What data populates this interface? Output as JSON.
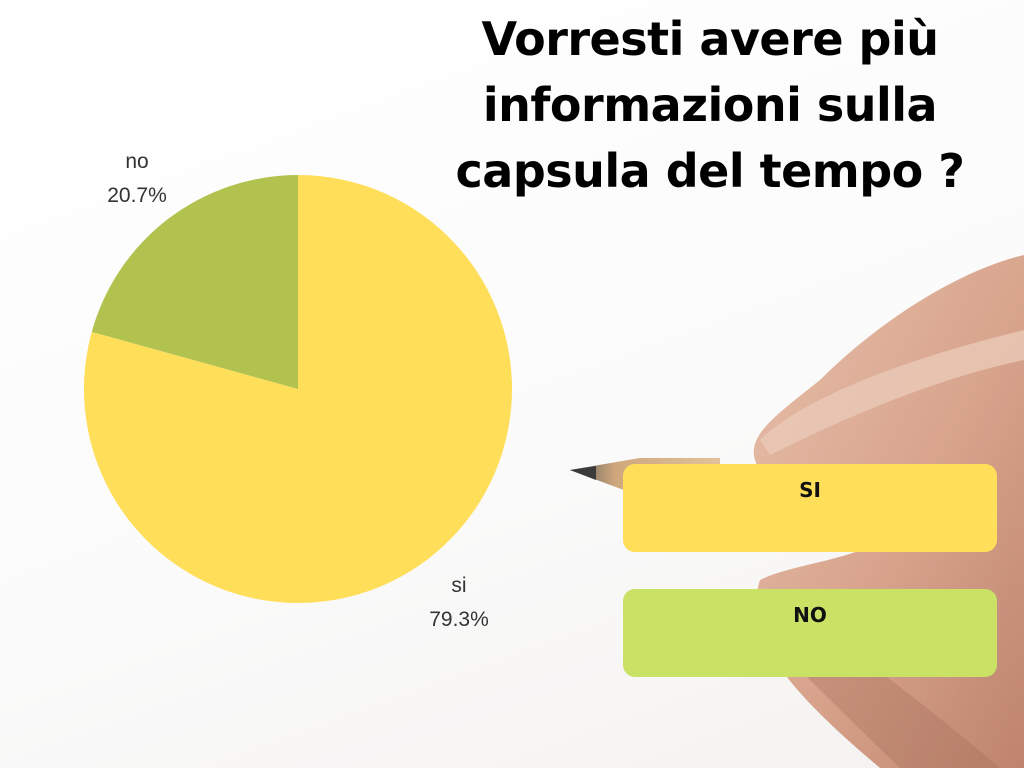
{
  "title_lines": [
    "Vorresti avere più",
    "informazioni sulla",
    "capsula del tempo ?"
  ],
  "legend": {
    "si_label": "SI",
    "no_label": "NO",
    "si_color": "#FFDE59",
    "no_color": "#C9E265"
  },
  "chart_data": {
    "type": "pie",
    "title": "Vorresti avere più informazioni sulla capsula del tempo ?",
    "slices": [
      {
        "label": "si",
        "value": 79.3,
        "value_label": "79.3%",
        "color": "#FFDE59"
      },
      {
        "label": "no",
        "value": 20.7,
        "value_label": "20.7%",
        "color": "#B2C24F"
      }
    ]
  }
}
